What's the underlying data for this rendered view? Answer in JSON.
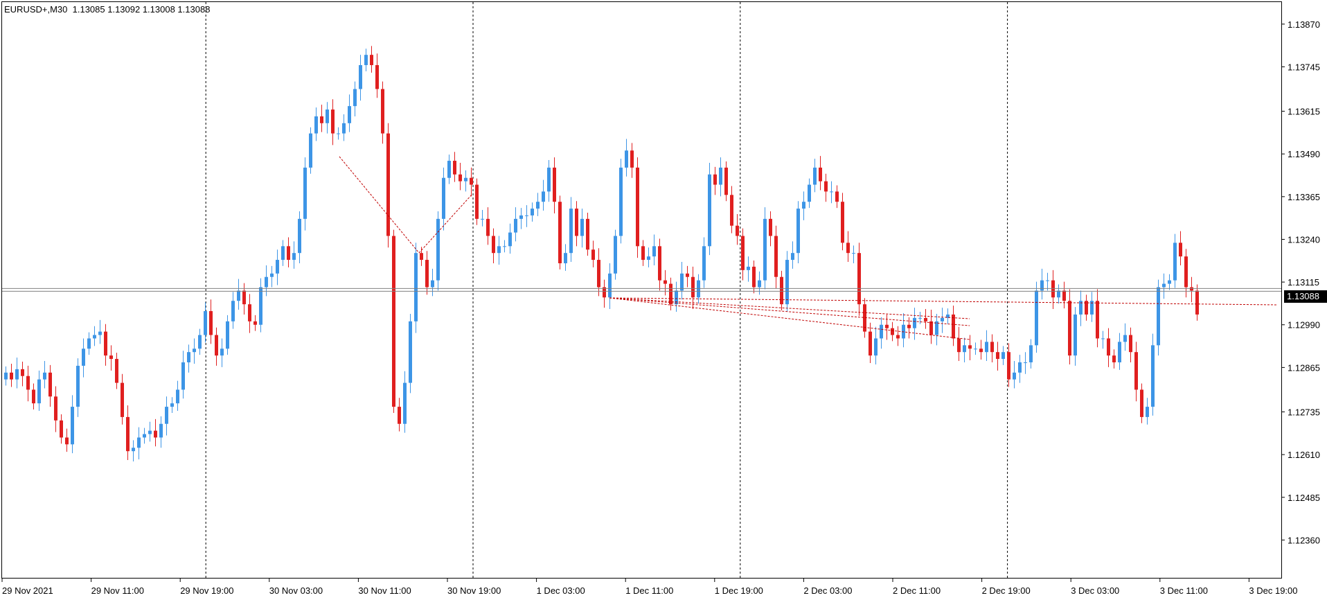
{
  "header": {
    "symbol_timeframe": "EURUSD+,M30",
    "ohlc": "1.13085 1.13092 1.13008 1.13088"
  },
  "current_price": "1.13088",
  "colors": {
    "bull": "#3d95e6",
    "bear": "#e01f1f",
    "grid": "#000000",
    "price_line": "#808080",
    "trend": "#c00000"
  },
  "chart_data": {
    "type": "candlestick",
    "symbol": "EURUSD+",
    "timeframe": "M30",
    "ylim": [
      1.123,
      1.139
    ],
    "y_ticks": [
      "1.13870",
      "1.13745",
      "1.13615",
      "1.13490",
      "1.13365",
      "1.13240",
      "1.13115",
      "1.12990",
      "1.12865",
      "1.12735",
      "1.12610",
      "1.12485",
      "1.12360"
    ],
    "y_tick_values": [
      1.1387,
      1.13745,
      1.13615,
      1.1349,
      1.13365,
      1.1324,
      1.13115,
      1.1299,
      1.12865,
      1.12735,
      1.1261,
      1.12485,
      1.1236
    ],
    "x_ticks": [
      "29 Nov 2021",
      "29 Nov 11:00",
      "29 Nov 19:00",
      "30 Nov 03:00",
      "30 Nov 11:00",
      "30 Nov 19:00",
      "1 Dec 03:00",
      "1 Dec 11:00",
      "1 Dec 19:00",
      "2 Dec 03:00",
      "2 Dec 11:00",
      "2 Dec 19:00",
      "3 Dec 03:00",
      "3 Dec 11:00",
      "3 Dec 19:00"
    ],
    "separator_labels": [
      "29 Nov 19:00",
      "30 Nov 19:00",
      "1 Dec 19:00",
      "2 Dec 19:00"
    ],
    "candles_per_label": 16,
    "current_price": 1.13088,
    "grid": false,
    "closes": [
      1.1285,
      1.1283,
      1.1286,
      1.1284,
      1.128,
      1.1276,
      1.1283,
      1.1285,
      1.1278,
      1.1271,
      1.1266,
      1.1264,
      1.1275,
      1.1287,
      1.1292,
      1.1295,
      1.1296,
      1.1297,
      1.129,
      1.1289,
      1.1282,
      1.1272,
      1.1262,
      1.1263,
      1.1266,
      1.1267,
      1.1268,
      1.1266,
      1.127,
      1.1275,
      1.1276,
      1.128,
      1.1288,
      1.1291,
      1.1292,
      1.1296,
      1.1303,
      1.1296,
      1.129,
      1.1292,
      1.13,
      1.1306,
      1.1309,
      1.1305,
      1.13,
      1.1299,
      1.131,
      1.1313,
      1.1314,
      1.1318,
      1.1322,
      1.1318,
      1.132,
      1.133,
      1.1345,
      1.1355,
      1.136,
      1.1358,
      1.1362,
      1.1355,
      1.1355,
      1.1358,
      1.1363,
      1.1368,
      1.1375,
      1.1378,
      1.1375,
      1.1368,
      1.1355,
      1.1325,
      1.1275,
      1.127,
      1.1282,
      1.13,
      1.132,
      1.1318,
      1.131,
      1.1312,
      1.133,
      1.1342,
      1.1347,
      1.1343,
      1.1341,
      1.1342,
      1.134,
      1.133,
      1.133,
      1.1325,
      1.132,
      1.1322,
      1.1322,
      1.1326,
      1.133,
      1.1331,
      1.1331,
      1.1333,
      1.1335,
      1.1338,
      1.1345,
      1.1335,
      1.1317,
      1.132,
      1.1333,
      1.1325,
      1.133,
      1.1321,
      1.1318,
      1.131,
      1.1307,
      1.1314,
      1.1325,
      1.1345,
      1.135,
      1.1345,
      1.1322,
      1.1318,
      1.1319,
      1.1322,
      1.1312,
      1.1311,
      1.1305,
      1.1309,
      1.1314,
      1.1313,
      1.1307,
      1.1312,
      1.1322,
      1.1343,
      1.134,
      1.1345,
      1.1337,
      1.1328,
      1.1325,
      1.1315,
      1.1316,
      1.131,
      1.1312,
      1.133,
      1.1325,
      1.1313,
      1.1305,
      1.1318,
      1.132,
      1.1333,
      1.1335,
      1.134,
      1.1345,
      1.1341,
      1.1338,
      1.1338,
      1.1335,
      1.1323,
      1.132,
      1.132,
      1.1305,
      1.1297,
      1.129,
      1.1295,
      1.1299,
      1.1298,
      1.1296,
      1.1295,
      1.1299,
      1.1298,
      1.1301,
      1.1301,
      1.13,
      1.1296,
      1.13,
      1.1301,
      1.1302,
      1.1295,
      1.1291,
      1.1293,
      1.1292,
      1.1292,
      1.1291,
      1.1294,
      1.1291,
      1.1289,
      1.1291,
      1.1283,
      1.1285,
      1.1288,
      1.1288,
      1.1293,
      1.1309,
      1.1312,
      1.1312,
      1.1307,
      1.1309,
      1.1306,
      1.129,
      1.1302,
      1.1306,
      1.1302,
      1.1306,
      1.1295,
      1.1295,
      1.129,
      1.1288,
      1.1294,
      1.1296,
      1.1291,
      1.128,
      1.1272,
      1.1275,
      1.1293,
      1.131,
      1.1311,
      1.1312,
      1.1323,
      1.1319,
      1.131,
      1.1309,
      1.1302
    ]
  }
}
